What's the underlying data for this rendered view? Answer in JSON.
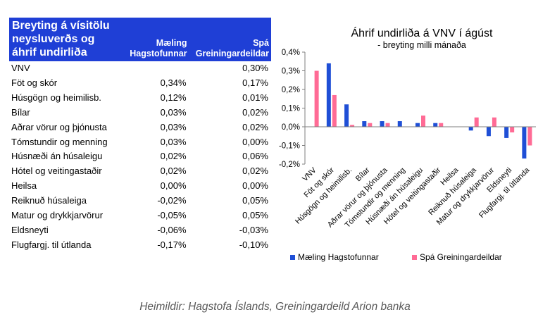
{
  "table": {
    "title_lines": [
      "Breyting á vísitölu",
      "neysluverðs og",
      "áhrif undirliða"
    ],
    "col1_lines": [
      "Mæling",
      "Hagstofunnar"
    ],
    "col2_lines": [
      "Spá",
      "Greiningardeildar"
    ],
    "rows": [
      {
        "label": "VNV",
        "v1": "",
        "v2": "0,30%"
      },
      {
        "label": "Föt og skór",
        "v1": "0,34%",
        "v2": "0,17%"
      },
      {
        "label": "Húsgögn og heimilisb.",
        "v1": "0,12%",
        "v2": "0,01%"
      },
      {
        "label": "Bílar",
        "v1": "0,03%",
        "v2": "0,02%"
      },
      {
        "label": "Aðrar vörur og þjónusta",
        "v1": "0,03%",
        "v2": "0,02%"
      },
      {
        "label": "Tómstundir og menning",
        "v1": "0,03%",
        "v2": "0,00%"
      },
      {
        "label": "Húsnæði án húsaleigu",
        "v1": "0,02%",
        "v2": "0,06%"
      },
      {
        "label": "Hótel og veitingastaðir",
        "v1": "0,02%",
        "v2": "0,02%"
      },
      {
        "label": "Heilsa",
        "v1": "0,00%",
        "v2": "0,00%"
      },
      {
        "label": "Reiknuð húsaleiga",
        "v1": "-0,02%",
        "v2": "0,05%"
      },
      {
        "label": "Matur og drykkjarvörur",
        "v1": "-0,05%",
        "v2": "0,05%"
      },
      {
        "label": "Eldsneyti",
        "v1": "-0,06%",
        "v2": "-0,03%"
      },
      {
        "label": "Flugfargj. til útlanda",
        "v1": "-0,17%",
        "v2": "-0,10%"
      }
    ]
  },
  "chart_data": {
    "type": "bar",
    "title": "Áhrif undirliða á VNV í ágúst",
    "subtitle": "- breyting milli mánaða",
    "xlabel": "",
    "ylabel": "",
    "categories": [
      "VNV",
      "Föt og skór",
      "Húsgögn og heimilisb.",
      "Bílar",
      "Aðrar vörur og þjónusta",
      "Tómstundir og menning",
      "Húsnæði án húsaleigu",
      "Hótel og veitingastaðir",
      "Heilsa",
      "Reiknuð húsaleiga",
      "Matur og drykkjarvörur",
      "Eldsneyti",
      "Flugfargj. til útlanda"
    ],
    "series": [
      {
        "name": "Mæling Hagstofunnar",
        "color": "#1f4fd6",
        "values": [
          null,
          0.34,
          0.12,
          0.03,
          0.03,
          0.03,
          0.02,
          0.02,
          0.0,
          -0.02,
          -0.05,
          -0.06,
          -0.17
        ]
      },
      {
        "name": "Spá Greiningardeildar",
        "color": "#ff6b95",
        "values": [
          0.3,
          0.17,
          0.01,
          0.02,
          0.02,
          0.0,
          0.06,
          0.02,
          0.0,
          0.05,
          0.05,
          -0.03,
          -0.1
        ]
      }
    ],
    "ylim": [
      -0.2,
      0.4
    ],
    "yticks": [
      0.4,
      0.3,
      0.2,
      0.1,
      0.0,
      -0.1,
      -0.2
    ],
    "ytick_labels": [
      "0,4%",
      "0,3%",
      "0,2%",
      "0,1%",
      "0,0%",
      "-0,1%",
      "-0,2%"
    ],
    "grid": false,
    "legend_position": "bottom"
  },
  "source": "Heimildir: Hagstofa Íslands, Greiningardeild Arion banka"
}
